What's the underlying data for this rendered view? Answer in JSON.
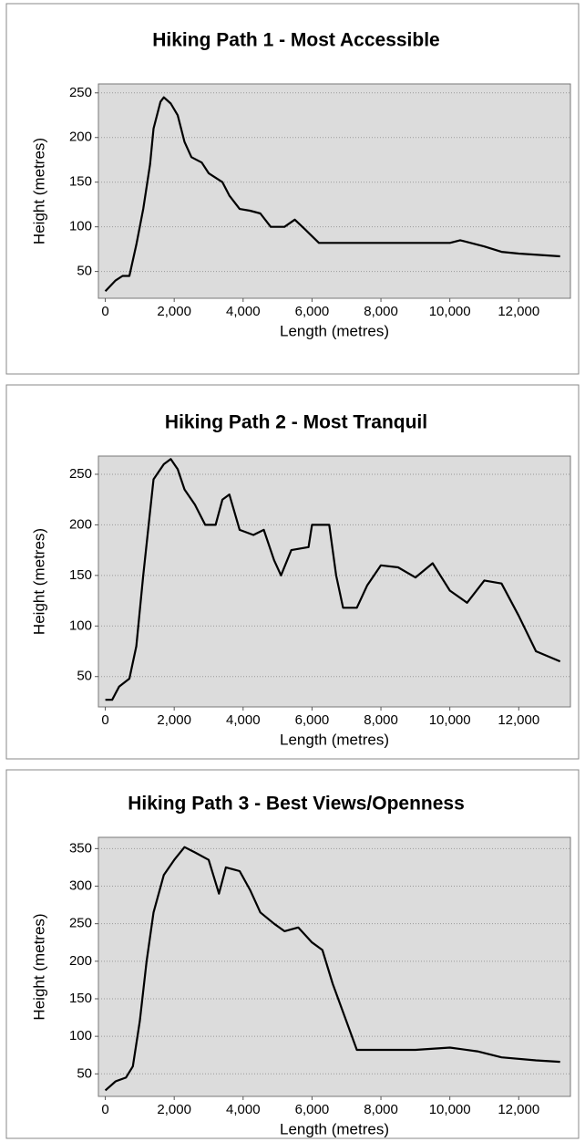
{
  "chart_data": [
    {
      "type": "line",
      "title": "Hiking Path 1 - Most Accessible",
      "x_label": "Length (metres)",
      "y_label": "Height (metres)",
      "color": "#000000",
      "grid": true,
      "x": [
        0,
        300,
        500,
        700,
        900,
        1100,
        1300,
        1400,
        1600,
        1700,
        1900,
        2100,
        2300,
        2500,
        2800,
        3000,
        3400,
        3600,
        3900,
        4200,
        4500,
        4800,
        5200,
        5500,
        5800,
        6200,
        8000,
        10000,
        10300,
        11000,
        11500,
        12000,
        13200
      ],
      "values": [
        28,
        40,
        45,
        45,
        80,
        120,
        170,
        210,
        240,
        245,
        238,
        225,
        195,
        178,
        172,
        160,
        150,
        135,
        120,
        118,
        115,
        100,
        100,
        108,
        97,
        82,
        82,
        82,
        85,
        78,
        72,
        70,
        67
      ],
      "xlim": [
        -200,
        13500
      ],
      "ylim": [
        20,
        260
      ],
      "xticks": [
        0,
        {
          "value": 2000,
          "label": "2,000"
        },
        {
          "value": 4000,
          "label": "4,000"
        },
        {
          "value": 6000,
          "label": "6,000"
        },
        {
          "value": 8000,
          "label": "8,000"
        },
        {
          "value": 10000,
          "label": "10,000"
        },
        {
          "value": 12000,
          "label": "12,000"
        }
      ],
      "yticks": [
        50,
        100,
        150,
        200,
        250
      ]
    },
    {
      "type": "line",
      "title": "Hiking Path 2 - Most Tranquil",
      "x_label": "Length (metres)",
      "y_label": "Height (metres)",
      "color": "#000000",
      "grid": true,
      "x": [
        0,
        200,
        400,
        700,
        900,
        1100,
        1400,
        1700,
        1900,
        2100,
        2300,
        2600,
        2900,
        3200,
        3400,
        3600,
        3900,
        4300,
        4600,
        4900,
        5100,
        5400,
        5900,
        6000,
        6500,
        6700,
        6900,
        7300,
        7600,
        8000,
        8500,
        9000,
        9500,
        10000,
        10500,
        11000,
        11500,
        12000,
        12500,
        13200
      ],
      "values": [
        27,
        27,
        40,
        48,
        80,
        150,
        245,
        260,
        265,
        255,
        235,
        220,
        200,
        200,
        225,
        230,
        195,
        190,
        195,
        165,
        150,
        175,
        178,
        200,
        200,
        150,
        118,
        118,
        140,
        160,
        158,
        148,
        162,
        135,
        123,
        145,
        142,
        110,
        75,
        65
      ],
      "xlim": [
        -200,
        13500
      ],
      "ylim": [
        20,
        268
      ],
      "xticks": [
        0,
        {
          "value": 2000,
          "label": "2,000"
        },
        {
          "value": 4000,
          "label": "4,000"
        },
        {
          "value": 6000,
          "label": "6,000"
        },
        {
          "value": 8000,
          "label": "8,000"
        },
        {
          "value": 10000,
          "label": "10,000"
        },
        {
          "value": 12000,
          "label": "12,000"
        }
      ],
      "yticks": [
        50,
        100,
        150,
        200,
        250
      ]
    },
    {
      "type": "line",
      "title": "Hiking Path 3 - Best Views/Openness",
      "x_label": "Length (metres)",
      "y_label": "Height (metres)",
      "color": "#000000",
      "grid": true,
      "x": [
        0,
        300,
        600,
        800,
        1000,
        1200,
        1400,
        1700,
        2000,
        2300,
        2600,
        3000,
        3300,
        3500,
        3900,
        4200,
        4500,
        4900,
        5200,
        5600,
        6000,
        6300,
        6600,
        7000,
        7300,
        9000,
        10000,
        10800,
        11500,
        12500,
        13200
      ],
      "values": [
        28,
        40,
        45,
        60,
        120,
        200,
        265,
        315,
        335,
        352,
        345,
        335,
        290,
        325,
        320,
        295,
        265,
        250,
        240,
        245,
        225,
        215,
        170,
        120,
        82,
        82,
        85,
        80,
        72,
        68,
        66
      ],
      "xlim": [
        -200,
        13500
      ],
      "ylim": [
        20,
        365
      ],
      "xticks": [
        0,
        {
          "value": 2000,
          "label": "2,000"
        },
        {
          "value": 4000,
          "label": "4,000"
        },
        {
          "value": 6000,
          "label": "6,000"
        },
        {
          "value": 8000,
          "label": "8,000"
        },
        {
          "value": 10000,
          "label": "10,000"
        },
        {
          "value": 12000,
          "label": "12,000"
        }
      ],
      "yticks": [
        50,
        100,
        150,
        200,
        250,
        300,
        350
      ]
    }
  ]
}
